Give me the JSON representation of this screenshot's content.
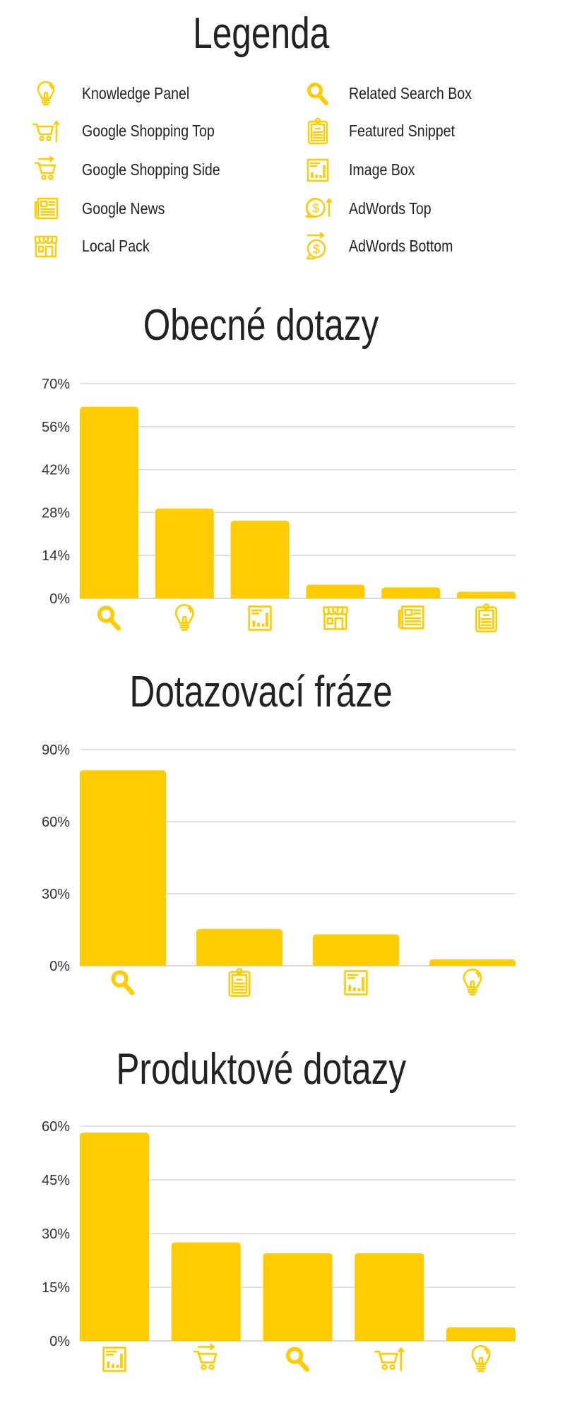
{
  "colors": {
    "accent": "#FFCC00",
    "text": "#222222",
    "grid": "#D9D9D9"
  },
  "legend": {
    "title": "Legenda",
    "items": [
      {
        "icon": "bulb",
        "label": "Knowledge Panel"
      },
      {
        "icon": "cart-up",
        "label": "Google Shopping Top"
      },
      {
        "icon": "cart-side",
        "label": "Google Shopping Side"
      },
      {
        "icon": "news",
        "label": "Google News"
      },
      {
        "icon": "store",
        "label": "Local Pack"
      },
      {
        "icon": "search",
        "label": "Related Search Box"
      },
      {
        "icon": "clipboard",
        "label": "Featured Snippet"
      },
      {
        "icon": "image-box",
        "label": "Image Box"
      },
      {
        "icon": "dollar-up",
        "label": "AdWords Top"
      },
      {
        "icon": "dollar-side",
        "label": "AdWords Bottom"
      }
    ]
  },
  "chart_data": [
    {
      "type": "bar",
      "title": "Obecné dotazy",
      "ylim": [
        0,
        70
      ],
      "ticks": [
        "0%",
        "14%",
        "28%",
        "42%",
        "56%",
        "70%"
      ],
      "tick_values": [
        0,
        14,
        28,
        42,
        56,
        70
      ],
      "grid": true,
      "categories": [
        "Related Search Box",
        "Knowledge Panel",
        "Image Box",
        "Local Pack",
        "Google News",
        "Featured Snippet"
      ],
      "icons": [
        "search",
        "bulb",
        "image-box",
        "store",
        "news",
        "clipboard"
      ],
      "values": [
        62.5,
        29.3,
        25.3,
        4.5,
        3.6,
        2.2
      ]
    },
    {
      "type": "bar",
      "title": "Dotazovací fráze",
      "ylim": [
        0,
        90
      ],
      "ticks": [
        "0%",
        "30%",
        "60%",
        "90%"
      ],
      "tick_values": [
        0,
        30,
        60,
        90
      ],
      "grid": true,
      "categories": [
        "Related Search Box",
        "Featured Snippet",
        "Image Box",
        "Knowledge Panel"
      ],
      "icons": [
        "search",
        "clipboard",
        "image-box",
        "bulb"
      ],
      "values": [
        81.4,
        15.3,
        13.1,
        2.7
      ]
    },
    {
      "type": "bar",
      "title": "Produktové dotazy",
      "ylim": [
        0,
        60
      ],
      "ticks": [
        "0%",
        "15%",
        "30%",
        "45%",
        "60%"
      ],
      "tick_values": [
        0,
        15,
        30,
        45,
        60
      ],
      "grid": true,
      "categories": [
        "Image Box",
        "Google Shopping Side",
        "Related Search Box",
        "Google Shopping Top",
        "Knowledge Panel"
      ],
      "icons": [
        "image-box",
        "cart-side",
        "search",
        "cart-up",
        "bulb"
      ],
      "values": [
        58.2,
        27.5,
        24.5,
        24.5,
        3.8
      ]
    }
  ]
}
